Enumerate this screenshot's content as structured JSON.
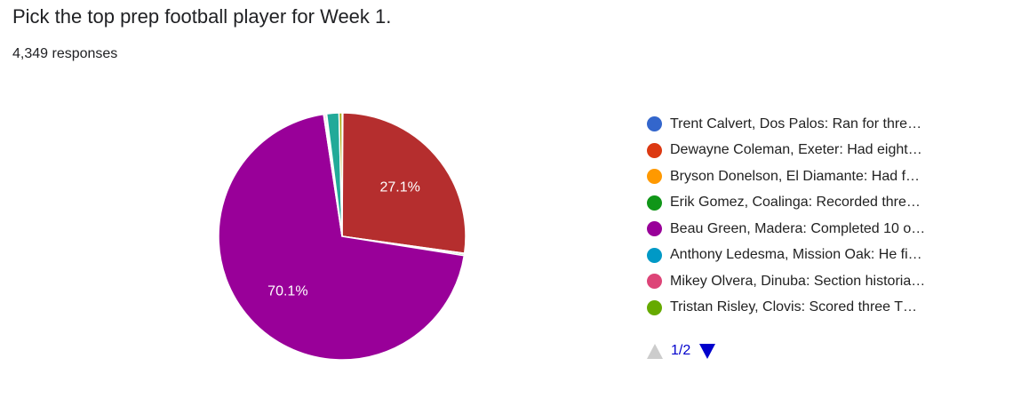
{
  "title": "Pick the top prep football player for Week 1.",
  "responses": "4,349 responses",
  "chart_data": {
    "type": "pie",
    "slices": [
      {
        "name": "Trent Calvert, Dos Palos: Ran for thre…",
        "value": 0.1,
        "color": "#3366cc"
      },
      {
        "name": "Dewayne Coleman, Exeter: Had eight…",
        "value": 27.1,
        "color": "#b52e2e",
        "label": "27.1%"
      },
      {
        "name": "Bryson Donelson, El Diamante: Had f…",
        "value": 0.1,
        "color": "#ff9900"
      },
      {
        "name": "Erik Gomez, Coalinga: Recorded thre…",
        "value": 0.2,
        "color": "#109618"
      },
      {
        "name": "Beau Green, Madera: Completed 10 o…",
        "value": 70.1,
        "color": "#990099",
        "label": "70.1%"
      },
      {
        "name": "Anthony Ledesma, Mission Oak: He fi…",
        "value": 0.1,
        "color": "#0099c6"
      },
      {
        "name": "Mikey Olvera, Dinuba: Section historia…",
        "value": 0.2,
        "color": "#dd4477"
      },
      {
        "name": "Tristan Risley, Clovis: Scored three T…",
        "value": 0.1,
        "color": "#66aa00"
      },
      {
        "name": "",
        "value": 1.6,
        "color": "#22aa99"
      },
      {
        "name": "",
        "value": 0.4,
        "color": "#aaaa11"
      }
    ]
  },
  "legend": {
    "items": [
      {
        "label": "Trent Calvert, Dos Palos: Ran for thre…",
        "color": "#3366cc"
      },
      {
        "label": "Dewayne Coleman, Exeter: Had eight…",
        "color": "#dc3912"
      },
      {
        "label": "Bryson Donelson, El Diamante: Had f…",
        "color": "#ff9900"
      },
      {
        "label": "Erik Gomez, Coalinga: Recorded thre…",
        "color": "#109618"
      },
      {
        "label": "Beau Green, Madera: Completed 10 o…",
        "color": "#990099"
      },
      {
        "label": "Anthony Ledesma, Mission Oak: He fi…",
        "color": "#0099c6"
      },
      {
        "label": "Mikey Olvera, Dinuba: Section historia…",
        "color": "#dd4477"
      },
      {
        "label": "Tristan Risley, Clovis: Scored three T…",
        "color": "#66aa00"
      }
    ]
  },
  "pager": {
    "text": "1/2",
    "prev_icon": "triangle-up-icon",
    "next_icon": "triangle-down-icon"
  }
}
